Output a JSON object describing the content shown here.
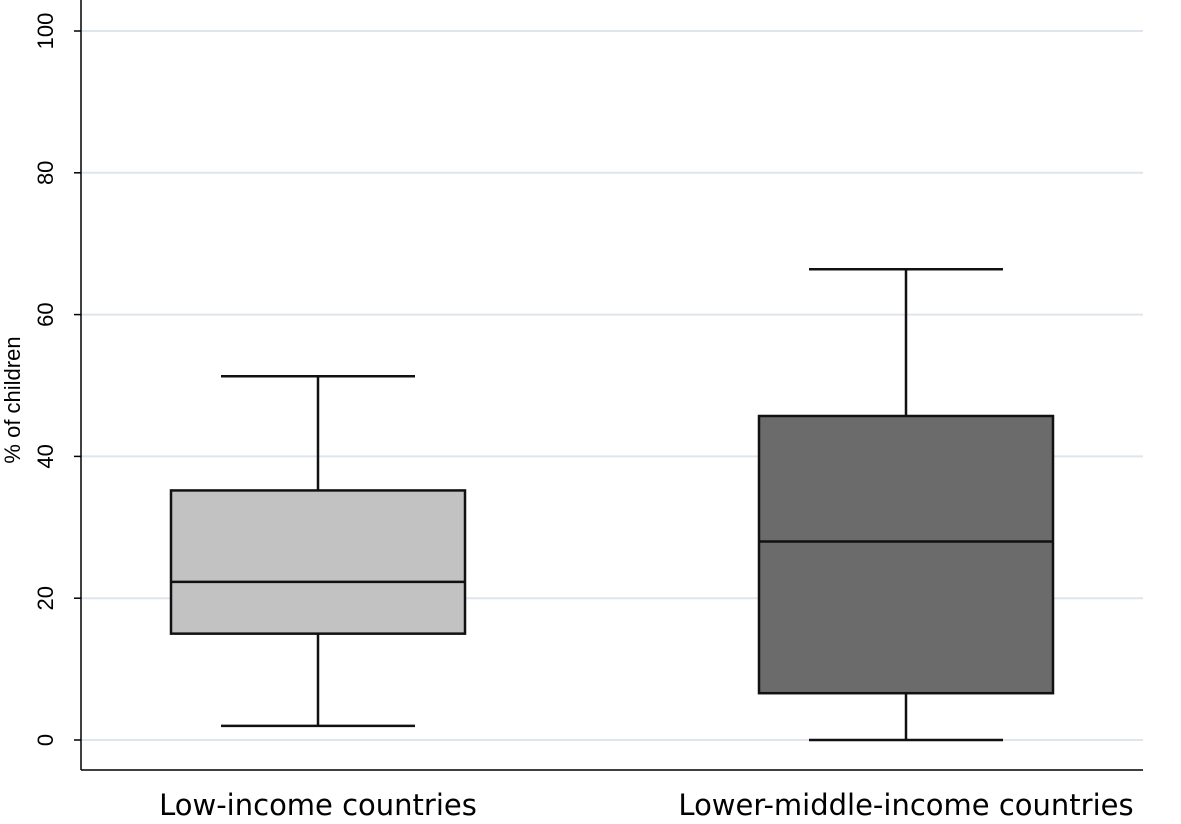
{
  "chart_data": {
    "type": "box",
    "title": "",
    "xlabel": "",
    "ylabel": "% of children",
    "ylim": [
      0,
      100
    ],
    "yticks": [
      0,
      20,
      40,
      60,
      80,
      100
    ],
    "grid": true,
    "categories": [
      "Low-income countries",
      "Lower-middle-income countries"
    ],
    "boxes": [
      {
        "category": "Low-income countries",
        "whisker_low": 2,
        "q1": 15,
        "median": 22.3,
        "q3": 35.2,
        "whisker_high": 51.3,
        "color": "#c2c2c2"
      },
      {
        "category": "Lower-middle-income countries",
        "whisker_low": 0,
        "q1": 6.6,
        "median": 28,
        "q3": 45.7,
        "whisker_high": 66.4,
        "color": "#6b6b6b"
      }
    ]
  },
  "colors": {
    "grid": "#dfe5ee",
    "axis": "#000000",
    "box_stroke": "#111111"
  }
}
